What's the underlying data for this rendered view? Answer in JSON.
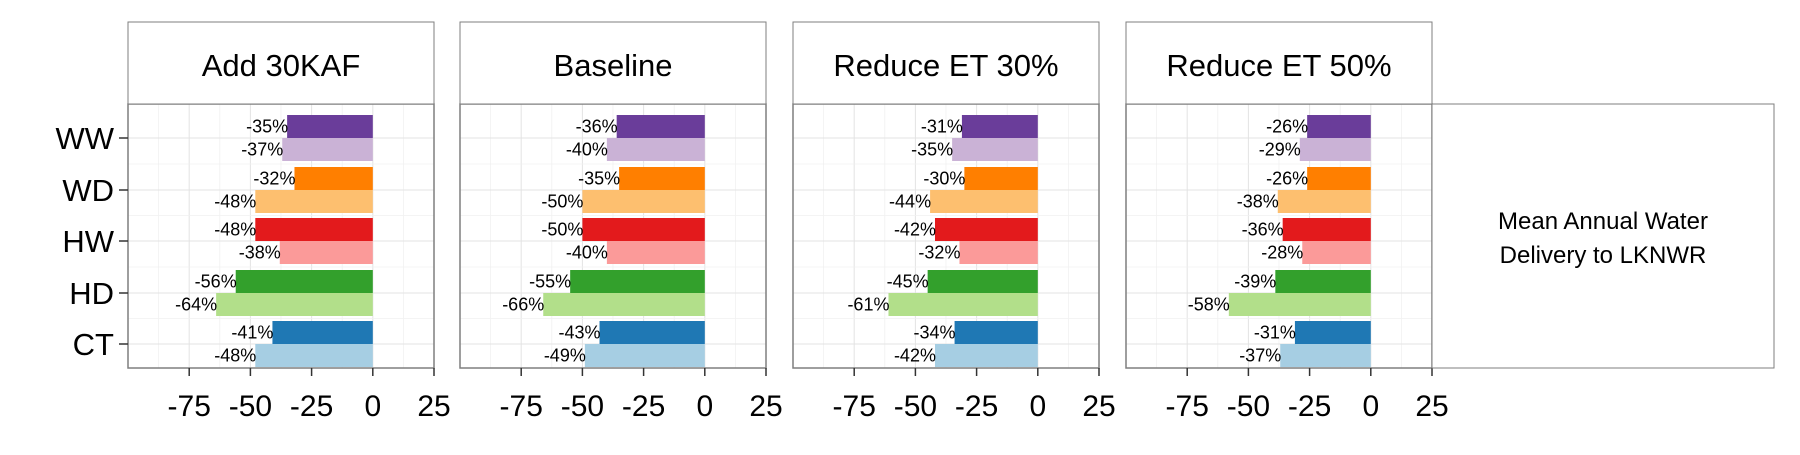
{
  "chart_data": {
    "type": "bar",
    "orientation": "horizontal",
    "panels": [
      "Add 30KAF",
      "Baseline",
      "Reduce ET 30%",
      "Reduce ET 50%"
    ],
    "categories": [
      "WW",
      "WD",
      "HW",
      "HD",
      "CT"
    ],
    "sub_bars": [
      "dark",
      "light"
    ],
    "xlim": [
      -100,
      25
    ],
    "xticks": [
      -75,
      -50,
      -25,
      0,
      25
    ],
    "x_tick_labels": [
      "-75",
      "-50",
      "-25",
      "0",
      "25"
    ],
    "grid": true,
    "strip_label": "Mean Annual Water Delivery to LKNWR",
    "strip_label_lines": [
      "Mean Annual Water",
      "Delivery to LKNWR"
    ],
    "colors": {
      "WW": [
        "#6a3d9a",
        "#cab2d6"
      ],
      "WD": [
        "#ff7f00",
        "#fdbf6f"
      ],
      "HW": [
        "#e31a1c",
        "#fb9a99"
      ],
      "HD": [
        "#33a02c",
        "#b2df8a"
      ],
      "CT": [
        "#1f78b4",
        "#a6cee3"
      ]
    },
    "values": {
      "Add 30KAF": {
        "WW": [
          -35,
          -37
        ],
        "WD": [
          -32,
          -48
        ],
        "HW": [
          -48,
          -38
        ],
        "HD": [
          -56,
          -64
        ],
        "CT": [
          -41,
          -48
        ]
      },
      "Baseline": {
        "WW": [
          -36,
          -40
        ],
        "WD": [
          -35,
          -50
        ],
        "HW": [
          -50,
          -40
        ],
        "HD": [
          -55,
          -66
        ],
        "CT": [
          -43,
          -49
        ]
      },
      "Reduce ET 30%": {
        "WW": [
          -31,
          -35
        ],
        "WD": [
          -30,
          -44
        ],
        "HW": [
          -42,
          -32
        ],
        "HD": [
          -45,
          -61
        ],
        "CT": [
          -34,
          -42
        ]
      },
      "Reduce ET 50%": {
        "WW": [
          -26,
          -29
        ],
        "WD": [
          -26,
          -38
        ],
        "HW": [
          -36,
          -28
        ],
        "HD": [
          -39,
          -58
        ],
        "CT": [
          -31,
          -37
        ]
      }
    }
  }
}
